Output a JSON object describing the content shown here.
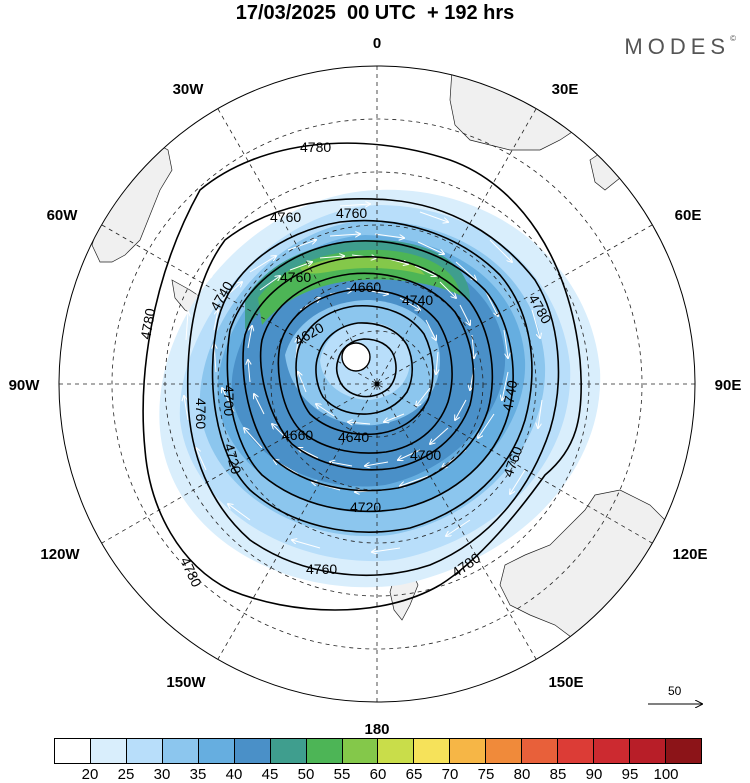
{
  "title": "17/03/2025  00 UTC  + 192 hrs",
  "brand": "MODES",
  "brand_mark": "©",
  "longitude_labels": {
    "lon_0": "0",
    "lon_30e": "30E",
    "lon_60e": "60E",
    "lon_90e": "90E",
    "lon_120e": "120E",
    "lon_150e": "150E",
    "lon_180": "180",
    "lon_150w": "150W",
    "lon_120w": "120W",
    "lon_90w": "90W",
    "lon_60w": "60W",
    "lon_30w": "30W"
  },
  "contour_labels": [
    "4780",
    "4760",
    "4760",
    "4760",
    "4740",
    "4780",
    "4760",
    "4660",
    "4620",
    "4700",
    "4640",
    "4660",
    "4720",
    "4740",
    "4780",
    "4700",
    "4720",
    "4760",
    "4760",
    "4780",
    "4740",
    "4780"
  ],
  "reference_vector_label": "50",
  "colorbar": {
    "colors": [
      "#ffffff",
      "#d9eefc",
      "#b8defa",
      "#8cc6ee",
      "#66aee0",
      "#4a90c8",
      "#3f9e8e",
      "#4db556",
      "#84c84a",
      "#c9dd4a",
      "#f6e25a",
      "#f6b646",
      "#f08a3a",
      "#e8603a",
      "#dc3c36",
      "#cc2a30",
      "#b81e28",
      "#8c1418"
    ],
    "labels": [
      "20",
      "25",
      "30",
      "35",
      "40",
      "45",
      "50",
      "55",
      "60",
      "65",
      "70",
      "75",
      "80",
      "85",
      "90",
      "95",
      "100"
    ]
  }
}
